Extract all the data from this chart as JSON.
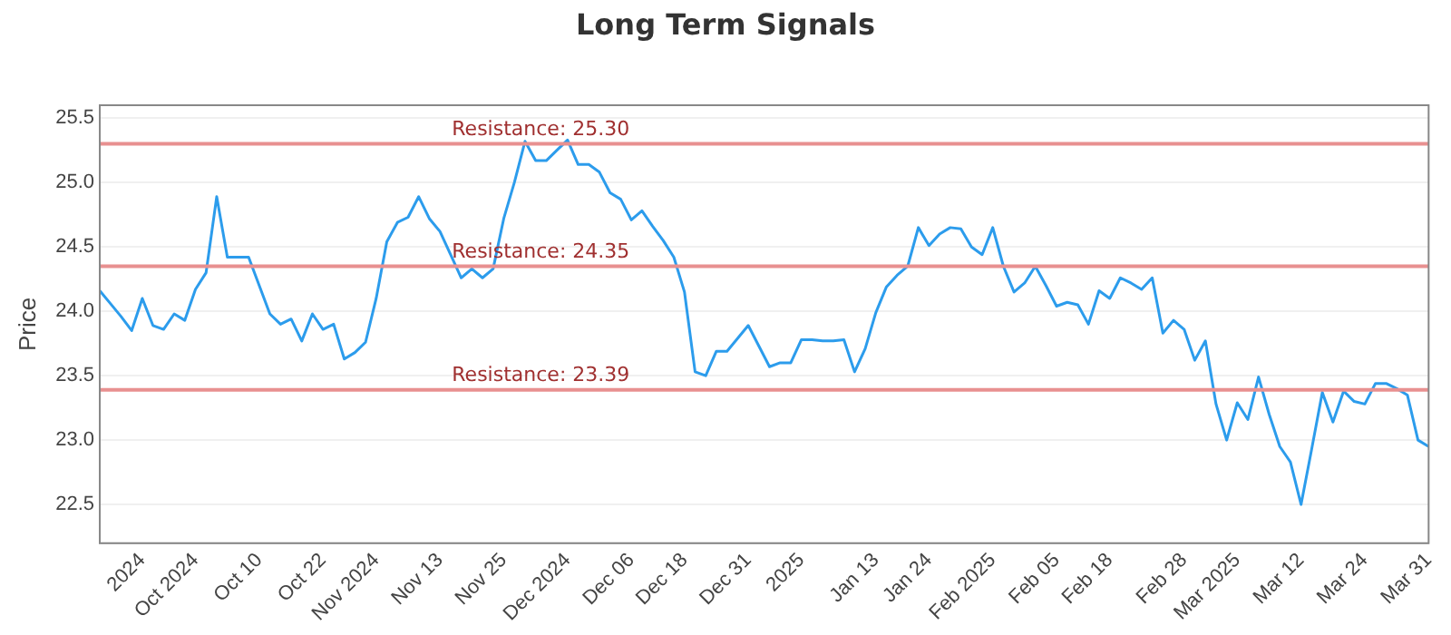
{
  "chart_data": {
    "type": "line",
    "title": "Long Term Signals",
    "ylabel": "Price",
    "categories": [
      null,
      null,
      null,
      null,
      "2024",
      null,
      null,
      null,
      null,
      "Oct 2024",
      null,
      null,
      null,
      null,
      null,
      "Oct 10",
      null,
      null,
      null,
      null,
      null,
      "Oct 22",
      null,
      null,
      null,
      null,
      "Nov 2024",
      null,
      null,
      null,
      null,
      null,
      "Nov 13",
      null,
      null,
      null,
      null,
      null,
      "Nov 25",
      null,
      null,
      null,
      null,
      null,
      "Dec 2024",
      null,
      null,
      null,
      null,
      null,
      "Dec 06",
      null,
      null,
      null,
      null,
      "Dec 18",
      null,
      null,
      null,
      null,
      null,
      "Dec 31",
      null,
      null,
      null,
      null,
      "2025",
      null,
      null,
      null,
      null,
      null,
      null,
      "Jan 13",
      null,
      null,
      null,
      null,
      "Jan 24",
      null,
      null,
      null,
      null,
      null,
      "Feb 2025",
      null,
      null,
      null,
      null,
      null,
      "Feb 05",
      null,
      null,
      null,
      null,
      "Feb 18",
      null,
      null,
      null,
      null,
      null,
      null,
      "Feb 28",
      null,
      null,
      null,
      null,
      "Mar 2025",
      null,
      null,
      null,
      null,
      null,
      "Mar 12",
      null,
      null,
      null,
      null,
      null,
      "Mar 24",
      null,
      null,
      null,
      null,
      null,
      "Mar 31"
    ],
    "series": [
      {
        "color": "#2c9cec",
        "values": [
          24.16,
          24.06,
          23.96,
          23.85,
          24.1,
          23.89,
          23.86,
          23.98,
          23.93,
          24.17,
          24.3,
          24.89,
          24.42,
          24.42,
          24.42,
          24.2,
          23.98,
          23.9,
          23.94,
          23.77,
          23.98,
          23.86,
          23.9,
          23.63,
          23.68,
          23.76,
          24.1,
          24.54,
          24.69,
          24.73,
          24.89,
          24.72,
          24.62,
          24.44,
          24.26,
          24.33,
          24.26,
          24.33,
          24.72,
          25.0,
          25.32,
          25.17,
          25.17,
          25.25,
          25.33,
          25.14,
          25.14,
          25.08,
          24.92,
          24.87,
          24.71,
          24.78,
          24.66,
          24.55,
          24.42,
          24.15,
          23.53,
          23.5,
          23.69,
          23.69,
          23.79,
          23.89,
          23.73,
          23.57,
          23.6,
          23.6,
          23.78,
          23.78,
          23.77,
          23.77,
          23.78,
          23.53,
          23.71,
          23.99,
          24.19,
          24.28,
          24.35,
          24.65,
          24.51,
          24.6,
          24.65,
          24.64,
          24.5,
          24.44,
          24.65,
          24.35,
          24.15,
          24.22,
          24.35,
          24.2,
          24.04,
          24.07,
          24.05,
          23.9,
          24.16,
          24.1,
          24.26,
          24.22,
          24.17,
          24.26,
          23.83,
          23.93,
          23.86,
          23.62,
          23.77,
          23.28,
          23.0,
          23.29,
          23.16,
          23.49,
          23.2,
          22.95,
          22.83,
          22.5,
          22.93,
          23.37,
          23.14,
          23.38,
          23.3,
          23.28,
          23.44,
          23.44,
          23.4,
          23.35,
          23.0,
          22.95
        ]
      }
    ],
    "ylim": [
      22.2,
      25.6
    ],
    "yticks": [
      22.5,
      {
        "value": 23,
        "label": "23.0"
      },
      23.5,
      {
        "value": 24,
        "label": "24.0"
      },
      24.5,
      {
        "value": 25,
        "label": "25.0"
      },
      25.5
    ],
    "ref_lines": [
      {
        "axis": "y",
        "value": 25.3,
        "label": "Resistance: 25.30",
        "color": "#e89090"
      },
      {
        "axis": "y",
        "value": 24.35,
        "label": "Resistance: 24.35",
        "color": "#e89090"
      },
      {
        "axis": "y",
        "value": 23.39,
        "label": "Resistance: 23.39",
        "color": "#e89090"
      }
    ],
    "grid": "y",
    "legend": false,
    "marker": "none",
    "line_style": "solid"
  }
}
